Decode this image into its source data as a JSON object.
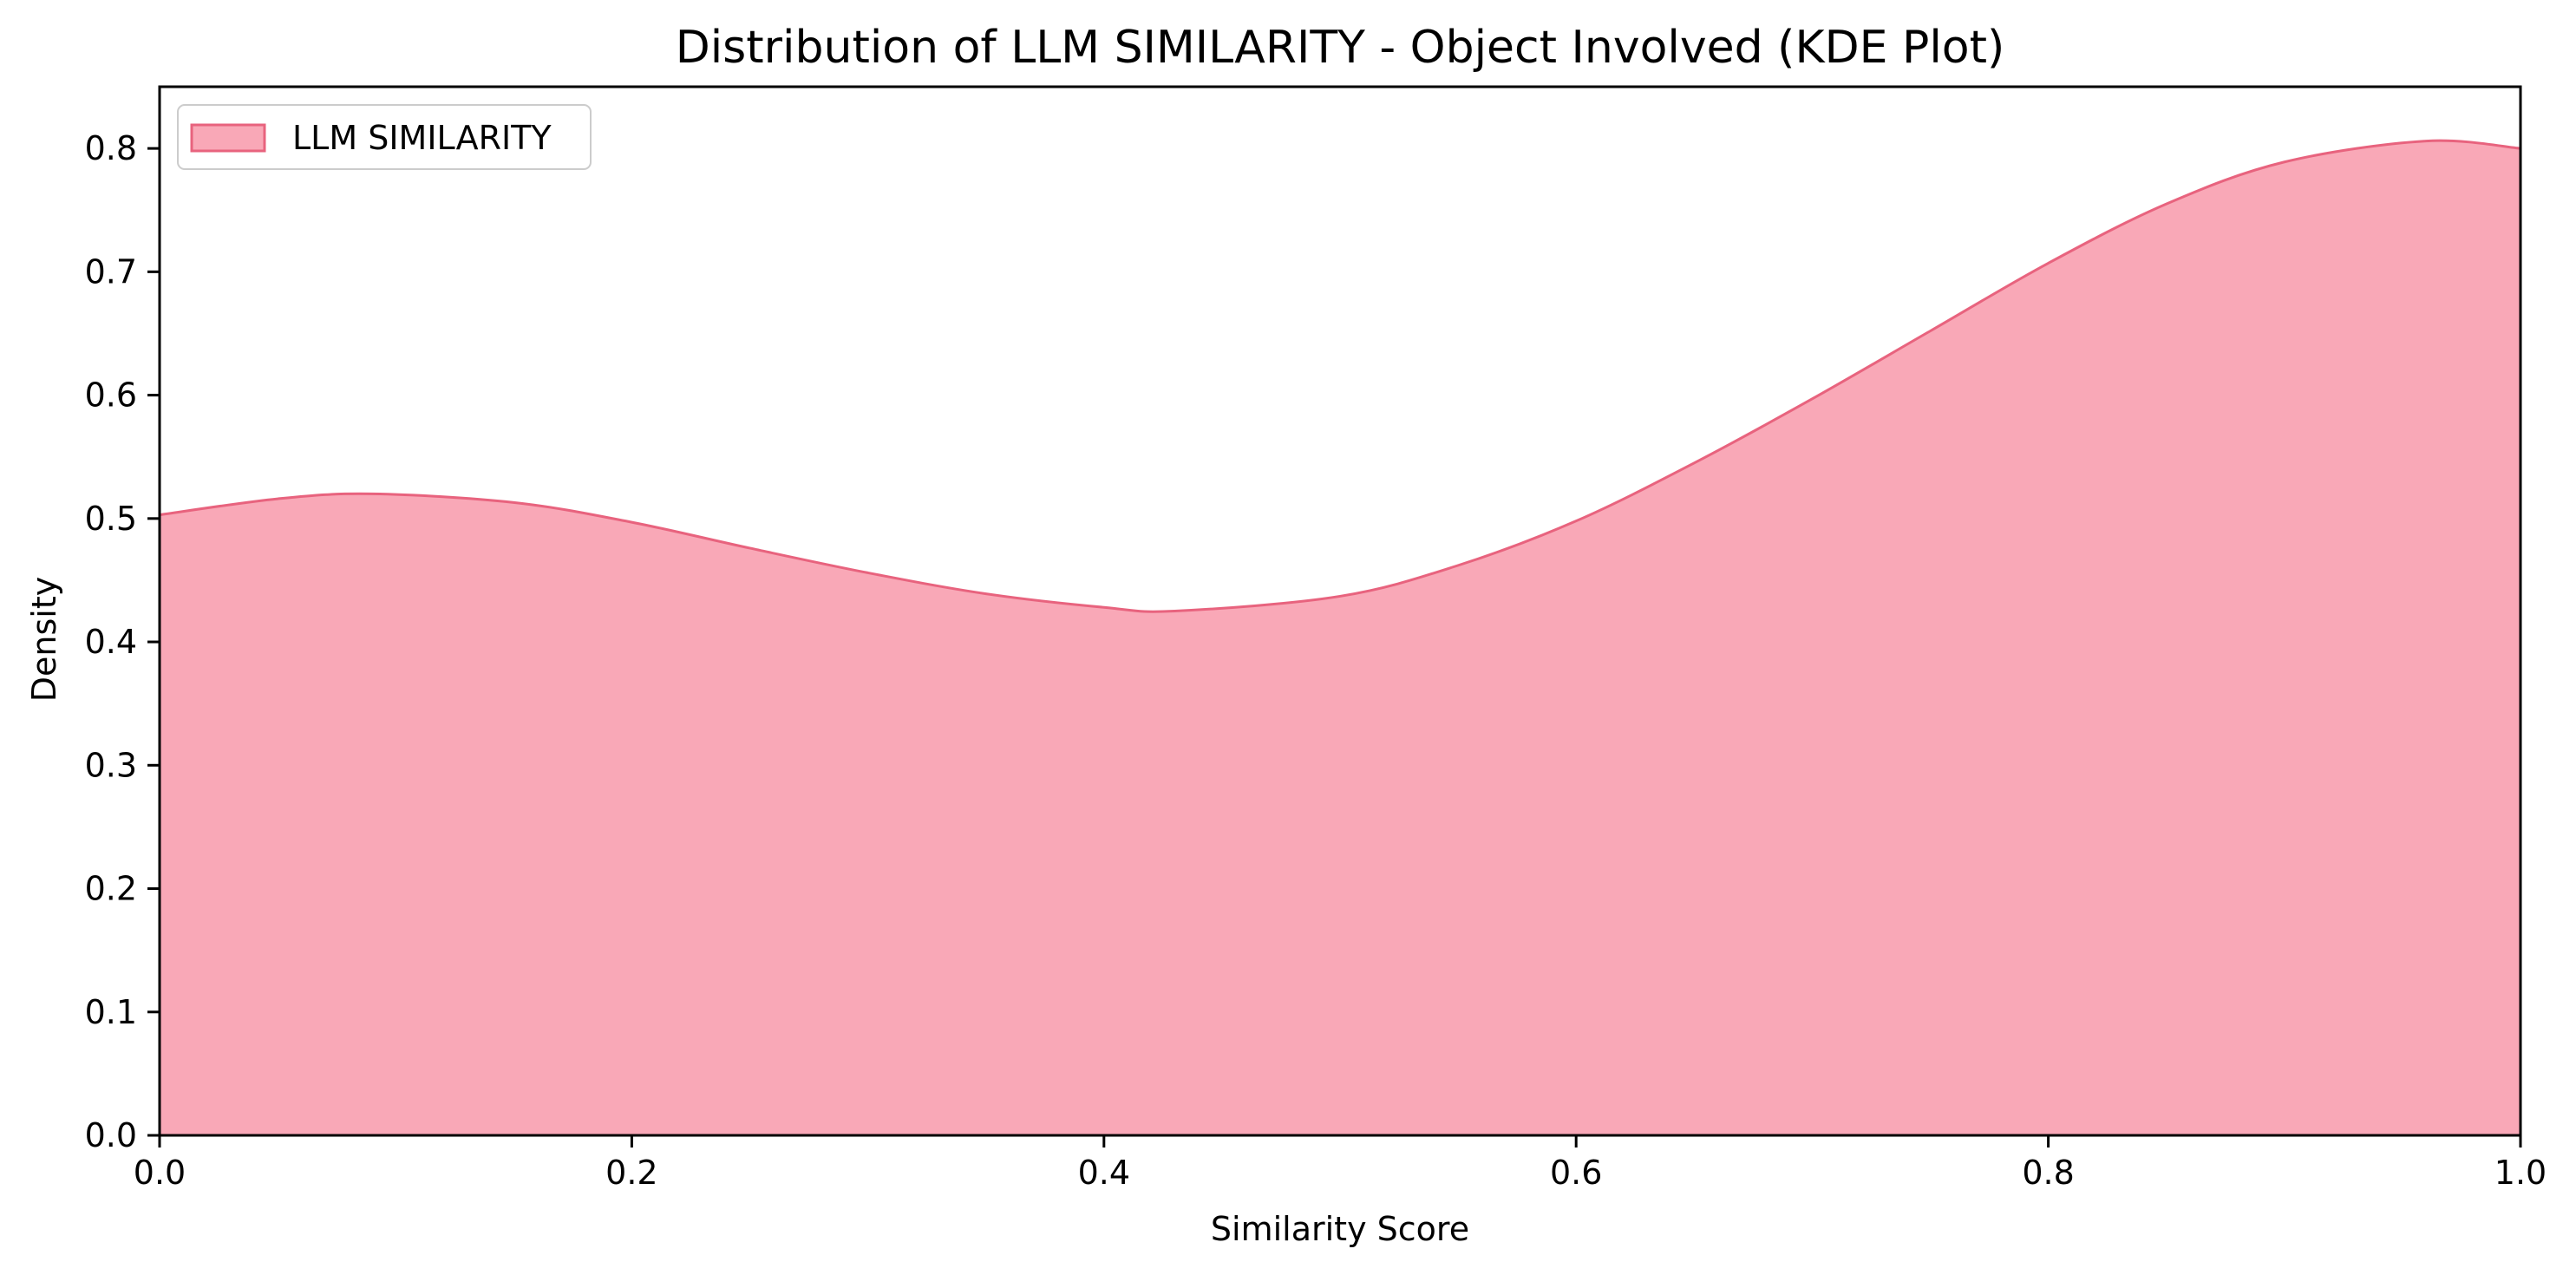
{
  "chart_data": {
    "type": "area",
    "title": "Distribution of LLM SIMILARITY - Object Involved (KDE Plot)",
    "xlabel": "Similarity Score",
    "ylabel": "Density",
    "xlim": [
      0.0,
      1.0
    ],
    "ylim": [
      0.0,
      0.85
    ],
    "x_ticks": [
      "0.0",
      "0.2",
      "0.4",
      "0.6",
      "0.8",
      "1.0"
    ],
    "y_ticks": [
      "0.0",
      "0.1",
      "0.2",
      "0.3",
      "0.4",
      "0.5",
      "0.6",
      "0.7",
      "0.8"
    ],
    "grid": false,
    "legend": {
      "position": "top-left"
    },
    "series": [
      {
        "name": "LLM SIMILARITY",
        "fill_color": "#f9a8b7",
        "line_color": "#e8637e",
        "x": [
          0.0,
          0.05,
          0.09,
          0.15,
          0.2,
          0.25,
          0.3,
          0.35,
          0.4,
          0.43,
          0.5,
          0.55,
          0.6,
          0.65,
          0.7,
          0.75,
          0.8,
          0.85,
          0.9,
          0.96,
          1.0
        ],
        "y": [
          0.503,
          0.516,
          0.52,
          0.513,
          0.497,
          0.476,
          0.456,
          0.439,
          0.428,
          0.425,
          0.437,
          0.462,
          0.498,
          0.545,
          0.597,
          0.652,
          0.707,
          0.755,
          0.789,
          0.806,
          0.8
        ]
      }
    ]
  }
}
